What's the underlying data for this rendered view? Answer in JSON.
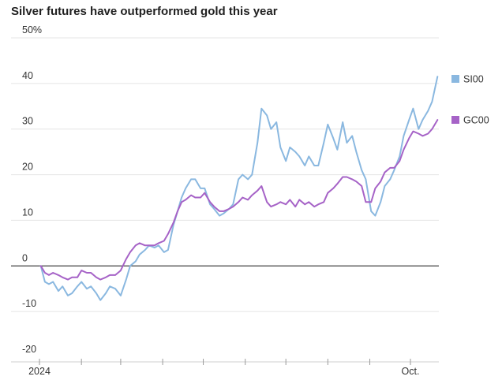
{
  "chart_data": {
    "type": "line",
    "title": "Silver futures have outperformed gold this year",
    "xlabel": "",
    "ylabel": "",
    "ylim": [
      -20,
      50
    ],
    "y_ticks": [
      {
        "value": 50,
        "label": "50%"
      },
      {
        "value": 40,
        "label": "40"
      },
      {
        "value": 30,
        "label": "30"
      },
      {
        "value": 20,
        "label": "20"
      },
      {
        "value": 10,
        "label": "10"
      },
      {
        "value": 0,
        "label": "0"
      },
      {
        "value": -10,
        "label": "-10"
      },
      {
        "value": -20,
        "label": "-20"
      }
    ],
    "x_range": [
      "2024-01-01",
      "2024-10-22"
    ],
    "x_ticks": [
      "2024-01-01",
      "2024-02-01",
      "2024-03-01",
      "2024-04-01",
      "2024-05-01",
      "2024-06-01",
      "2024-07-01",
      "2024-08-01",
      "2024-09-01",
      "2024-10-01"
    ],
    "x_tick_labels": [
      {
        "date": "2024-01-01",
        "label": "2024"
      },
      {
        "date": "2024-10-01",
        "label": "Oct."
      }
    ],
    "grid": true,
    "legend_position": "right",
    "series": [
      {
        "name": "SI00",
        "color": "#8ab8e0",
        "points": [
          [
            "2024-01-02",
            0
          ],
          [
            "2024-01-05",
            -3.5
          ],
          [
            "2024-01-08",
            -4
          ],
          [
            "2024-01-11",
            -3.5
          ],
          [
            "2024-01-15",
            -5.5
          ],
          [
            "2024-01-18",
            -4.5
          ],
          [
            "2024-01-22",
            -6.5
          ],
          [
            "2024-01-25",
            -6
          ],
          [
            "2024-01-29",
            -4.5
          ],
          [
            "2024-02-01",
            -3.5
          ],
          [
            "2024-02-05",
            -5
          ],
          [
            "2024-02-08",
            -4.5
          ],
          [
            "2024-02-12",
            -6
          ],
          [
            "2024-02-15",
            -7.5
          ],
          [
            "2024-02-19",
            -6
          ],
          [
            "2024-02-22",
            -4.5
          ],
          [
            "2024-02-26",
            -5
          ],
          [
            "2024-03-01",
            -6.5
          ],
          [
            "2024-03-05",
            -3
          ],
          [
            "2024-03-08",
            0
          ],
          [
            "2024-03-12",
            1
          ],
          [
            "2024-03-15",
            2.5
          ],
          [
            "2024-03-19",
            3.5
          ],
          [
            "2024-03-22",
            4.5
          ],
          [
            "2024-03-26",
            4
          ],
          [
            "2024-03-29",
            4.5
          ],
          [
            "2024-04-02",
            3
          ],
          [
            "2024-04-05",
            3.5
          ],
          [
            "2024-04-09",
            9
          ],
          [
            "2024-04-12",
            12
          ],
          [
            "2024-04-15",
            15
          ],
          [
            "2024-04-18",
            17
          ],
          [
            "2024-04-22",
            19
          ],
          [
            "2024-04-25",
            19
          ],
          [
            "2024-04-29",
            17
          ],
          [
            "2024-05-02",
            17
          ],
          [
            "2024-05-06",
            13.5
          ],
          [
            "2024-05-09",
            12.5
          ],
          [
            "2024-05-13",
            11
          ],
          [
            "2024-05-16",
            11.5
          ],
          [
            "2024-05-20",
            12.5
          ],
          [
            "2024-05-23",
            13.5
          ],
          [
            "2024-05-27",
            19
          ],
          [
            "2024-05-30",
            20
          ],
          [
            "2024-06-03",
            19
          ],
          [
            "2024-06-06",
            20
          ],
          [
            "2024-06-10",
            27
          ],
          [
            "2024-06-13",
            34.5
          ],
          [
            "2024-06-17",
            33
          ],
          [
            "2024-06-20",
            30
          ],
          [
            "2024-06-24",
            31.5
          ],
          [
            "2024-06-27",
            26
          ],
          [
            "2024-07-01",
            23
          ],
          [
            "2024-07-04",
            26
          ],
          [
            "2024-07-08",
            25
          ],
          [
            "2024-07-11",
            24
          ],
          [
            "2024-07-15",
            22
          ],
          [
            "2024-07-18",
            24
          ],
          [
            "2024-07-22",
            22
          ],
          [
            "2024-07-25",
            22
          ],
          [
            "2024-07-29",
            27
          ],
          [
            "2024-08-01",
            31
          ],
          [
            "2024-08-05",
            28
          ],
          [
            "2024-08-08",
            25.5
          ],
          [
            "2024-08-12",
            31.5
          ],
          [
            "2024-08-15",
            27
          ],
          [
            "2024-08-19",
            28.5
          ],
          [
            "2024-08-22",
            25
          ],
          [
            "2024-08-26",
            21
          ],
          [
            "2024-08-29",
            19
          ],
          [
            "2024-09-02",
            12
          ],
          [
            "2024-09-05",
            11
          ],
          [
            "2024-09-09",
            14
          ],
          [
            "2024-09-12",
            17.5
          ],
          [
            "2024-09-16",
            19
          ],
          [
            "2024-09-19",
            21
          ],
          [
            "2024-09-23",
            24
          ],
          [
            "2024-09-26",
            28.5
          ],
          [
            "2024-09-30",
            32
          ],
          [
            "2024-10-03",
            34.5
          ],
          [
            "2024-10-07",
            30
          ],
          [
            "2024-10-10",
            32
          ],
          [
            "2024-10-14",
            34
          ],
          [
            "2024-10-17",
            36
          ],
          [
            "2024-10-21",
            41.5
          ]
        ]
      },
      {
        "name": "GC00",
        "color": "#a663c7",
        "points": [
          [
            "2024-01-02",
            0
          ],
          [
            "2024-01-05",
            -1.5
          ],
          [
            "2024-01-08",
            -2
          ],
          [
            "2024-01-11",
            -1.5
          ],
          [
            "2024-01-15",
            -2
          ],
          [
            "2024-01-18",
            -2.5
          ],
          [
            "2024-01-22",
            -3
          ],
          [
            "2024-01-25",
            -2.5
          ],
          [
            "2024-01-29",
            -2.5
          ],
          [
            "2024-02-01",
            -1
          ],
          [
            "2024-02-05",
            -1.5
          ],
          [
            "2024-02-08",
            -1.5
          ],
          [
            "2024-02-12",
            -2.5
          ],
          [
            "2024-02-15",
            -3
          ],
          [
            "2024-02-19",
            -2.5
          ],
          [
            "2024-02-22",
            -2
          ],
          [
            "2024-02-26",
            -2
          ],
          [
            "2024-03-01",
            -1
          ],
          [
            "2024-03-05",
            1.5
          ],
          [
            "2024-03-08",
            3
          ],
          [
            "2024-03-12",
            4.5
          ],
          [
            "2024-03-15",
            5
          ],
          [
            "2024-03-19",
            4.5
          ],
          [
            "2024-03-22",
            4.5
          ],
          [
            "2024-03-26",
            4.5
          ],
          [
            "2024-03-29",
            5
          ],
          [
            "2024-04-02",
            5.5
          ],
          [
            "2024-04-05",
            7
          ],
          [
            "2024-04-09",
            9.5
          ],
          [
            "2024-04-12",
            12
          ],
          [
            "2024-04-15",
            14
          ],
          [
            "2024-04-18",
            14.5
          ],
          [
            "2024-04-22",
            15.5
          ],
          [
            "2024-04-25",
            15
          ],
          [
            "2024-04-29",
            15
          ],
          [
            "2024-05-02",
            16
          ],
          [
            "2024-05-06",
            14
          ],
          [
            "2024-05-09",
            13
          ],
          [
            "2024-05-13",
            12
          ],
          [
            "2024-05-16",
            12
          ],
          [
            "2024-05-20",
            12.5
          ],
          [
            "2024-05-23",
            13
          ],
          [
            "2024-05-27",
            14
          ],
          [
            "2024-05-30",
            15
          ],
          [
            "2024-06-03",
            14.5
          ],
          [
            "2024-06-06",
            15.5
          ],
          [
            "2024-06-10",
            16.5
          ],
          [
            "2024-06-13",
            17.5
          ],
          [
            "2024-06-17",
            14
          ],
          [
            "2024-06-20",
            13
          ],
          [
            "2024-06-24",
            13.5
          ],
          [
            "2024-06-27",
            14
          ],
          [
            "2024-07-01",
            13.5
          ],
          [
            "2024-07-04",
            14.5
          ],
          [
            "2024-07-08",
            13
          ],
          [
            "2024-07-11",
            14.5
          ],
          [
            "2024-07-15",
            13.5
          ],
          [
            "2024-07-18",
            14
          ],
          [
            "2024-07-22",
            13
          ],
          [
            "2024-07-25",
            13.5
          ],
          [
            "2024-07-29",
            14
          ],
          [
            "2024-08-01",
            16
          ],
          [
            "2024-08-05",
            17
          ],
          [
            "2024-08-08",
            18
          ],
          [
            "2024-08-12",
            19.5
          ],
          [
            "2024-08-15",
            19.5
          ],
          [
            "2024-08-19",
            19
          ],
          [
            "2024-08-22",
            18.5
          ],
          [
            "2024-08-26",
            17.5
          ],
          [
            "2024-08-29",
            14
          ],
          [
            "2024-09-02",
            14
          ],
          [
            "2024-09-05",
            17
          ],
          [
            "2024-09-09",
            18.5
          ],
          [
            "2024-09-12",
            20.5
          ],
          [
            "2024-09-16",
            21.5
          ],
          [
            "2024-09-19",
            21.5
          ],
          [
            "2024-09-23",
            23
          ],
          [
            "2024-09-26",
            25.5
          ],
          [
            "2024-09-30",
            28
          ],
          [
            "2024-10-03",
            29.5
          ],
          [
            "2024-10-07",
            29
          ],
          [
            "2024-10-10",
            28.5
          ],
          [
            "2024-10-14",
            29
          ],
          [
            "2024-10-17",
            30
          ],
          [
            "2024-10-21",
            32
          ]
        ]
      }
    ]
  }
}
